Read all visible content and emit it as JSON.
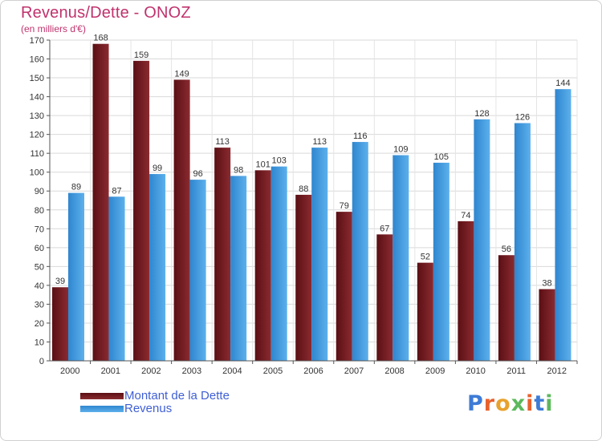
{
  "chart_data": {
    "type": "bar",
    "title": "Revenus/Dette - ONOZ",
    "subtitle": "(en milliers d'€)",
    "xlabel": "",
    "ylabel": "",
    "ylim": [
      0,
      170
    ],
    "ytick_step": 10,
    "grid": true,
    "categories": [
      "2000",
      "2001",
      "2002",
      "2003",
      "2004",
      "2005",
      "2006",
      "2007",
      "2008",
      "2009",
      "2010",
      "2011",
      "2012"
    ],
    "series": [
      {
        "name": "Montant de la Dette",
        "color": "#7b1d22",
        "values": [
          39,
          168,
          159,
          149,
          113,
          101,
          88,
          79,
          67,
          52,
          74,
          56,
          38
        ]
      },
      {
        "name": "Revenus",
        "color": "#3d9be0",
        "values": [
          89,
          87,
          99,
          96,
          98,
          103,
          113,
          116,
          109,
          105,
          128,
          126,
          144
        ]
      }
    ],
    "legend_position": "bottom-left"
  },
  "logo": {
    "text": "Proxiti",
    "letter_colors": [
      "#3d7bd6",
      "#e8612c",
      "#e8a22c",
      "#5cb85c",
      "#e8612c",
      "#3d7bd6",
      "#5cb85c"
    ]
  }
}
